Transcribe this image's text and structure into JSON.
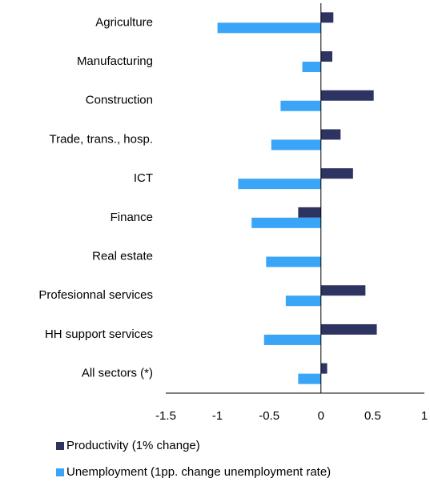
{
  "chart_data": {
    "type": "hbar",
    "categories": [
      "Agriculture",
      "Manufacturing",
      "Construction",
      "Trade, trans., hosp.",
      "ICT",
      "Finance",
      "Real estate",
      "Profesionnal services",
      "HH support services",
      "All sectors (*)"
    ],
    "series": [
      {
        "name": "Productivity (1% change)",
        "color": "#2e3461",
        "values": [
          0.12,
          0.11,
          0.51,
          0.19,
          0.31,
          -0.22,
          0,
          0.43,
          0.54,
          0.06
        ]
      },
      {
        "name": "Unemployment (1pp. change unemployment rate)",
        "color": "#3aa5f7",
        "values": [
          -1.0,
          -0.18,
          -0.39,
          -0.48,
          -0.8,
          -0.67,
          -0.53,
          -0.34,
          -0.55,
          -0.22
        ]
      }
    ],
    "xlim": [
      -1.5,
      1
    ],
    "xticks": [
      -1.5,
      -1,
      -0.5,
      0,
      0.5,
      1
    ]
  }
}
